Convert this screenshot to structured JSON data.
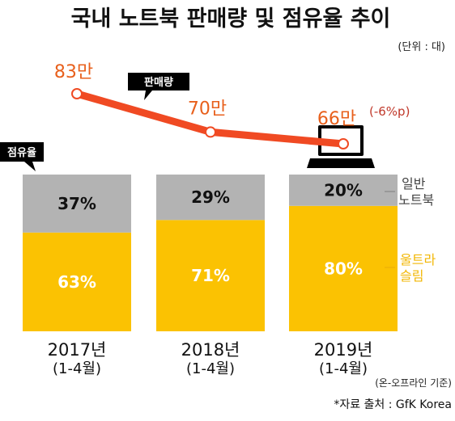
{
  "title": "국내 노트북 판매량 및 점유율 추이",
  "unit": "(단위 : 대)",
  "sales_bubble": "판매량",
  "share_bubble": "점유율",
  "colors": {
    "line": "#f04a23",
    "ultra_slim": "#fbc202",
    "general": "#b3b3b3",
    "text_gray": "#111111",
    "text_yellow": "#ffffff"
  },
  "chart_data": {
    "type": "bar",
    "stacked": true,
    "categories": [
      "2017년",
      "2018년",
      "2019년"
    ],
    "category_sub": [
      "(1-4월)",
      "(1-4월)",
      "(1-4월)"
    ],
    "series": [
      {
        "name": "울트라 슬림",
        "legend_lines": [
          "울트라",
          "슬림"
        ],
        "values": [
          63,
          71,
          80
        ],
        "labels": [
          "63%",
          "71%",
          "80%"
        ]
      },
      {
        "name": "일반 노트북",
        "legend_lines": [
          "일반",
          "노트북"
        ],
        "values": [
          37,
          29,
          20
        ],
        "labels": [
          "37%",
          "29%",
          "20%"
        ]
      }
    ],
    "ylim": [
      0,
      100
    ],
    "line": {
      "values": [
        830000,
        700000,
        660000
      ],
      "labels": [
        "83만",
        "70만",
        "66만"
      ],
      "change_label": "(-6%p)"
    }
  },
  "note": "(온-오프라인 기준)",
  "source": "*자료 출처 : GfK Korea"
}
